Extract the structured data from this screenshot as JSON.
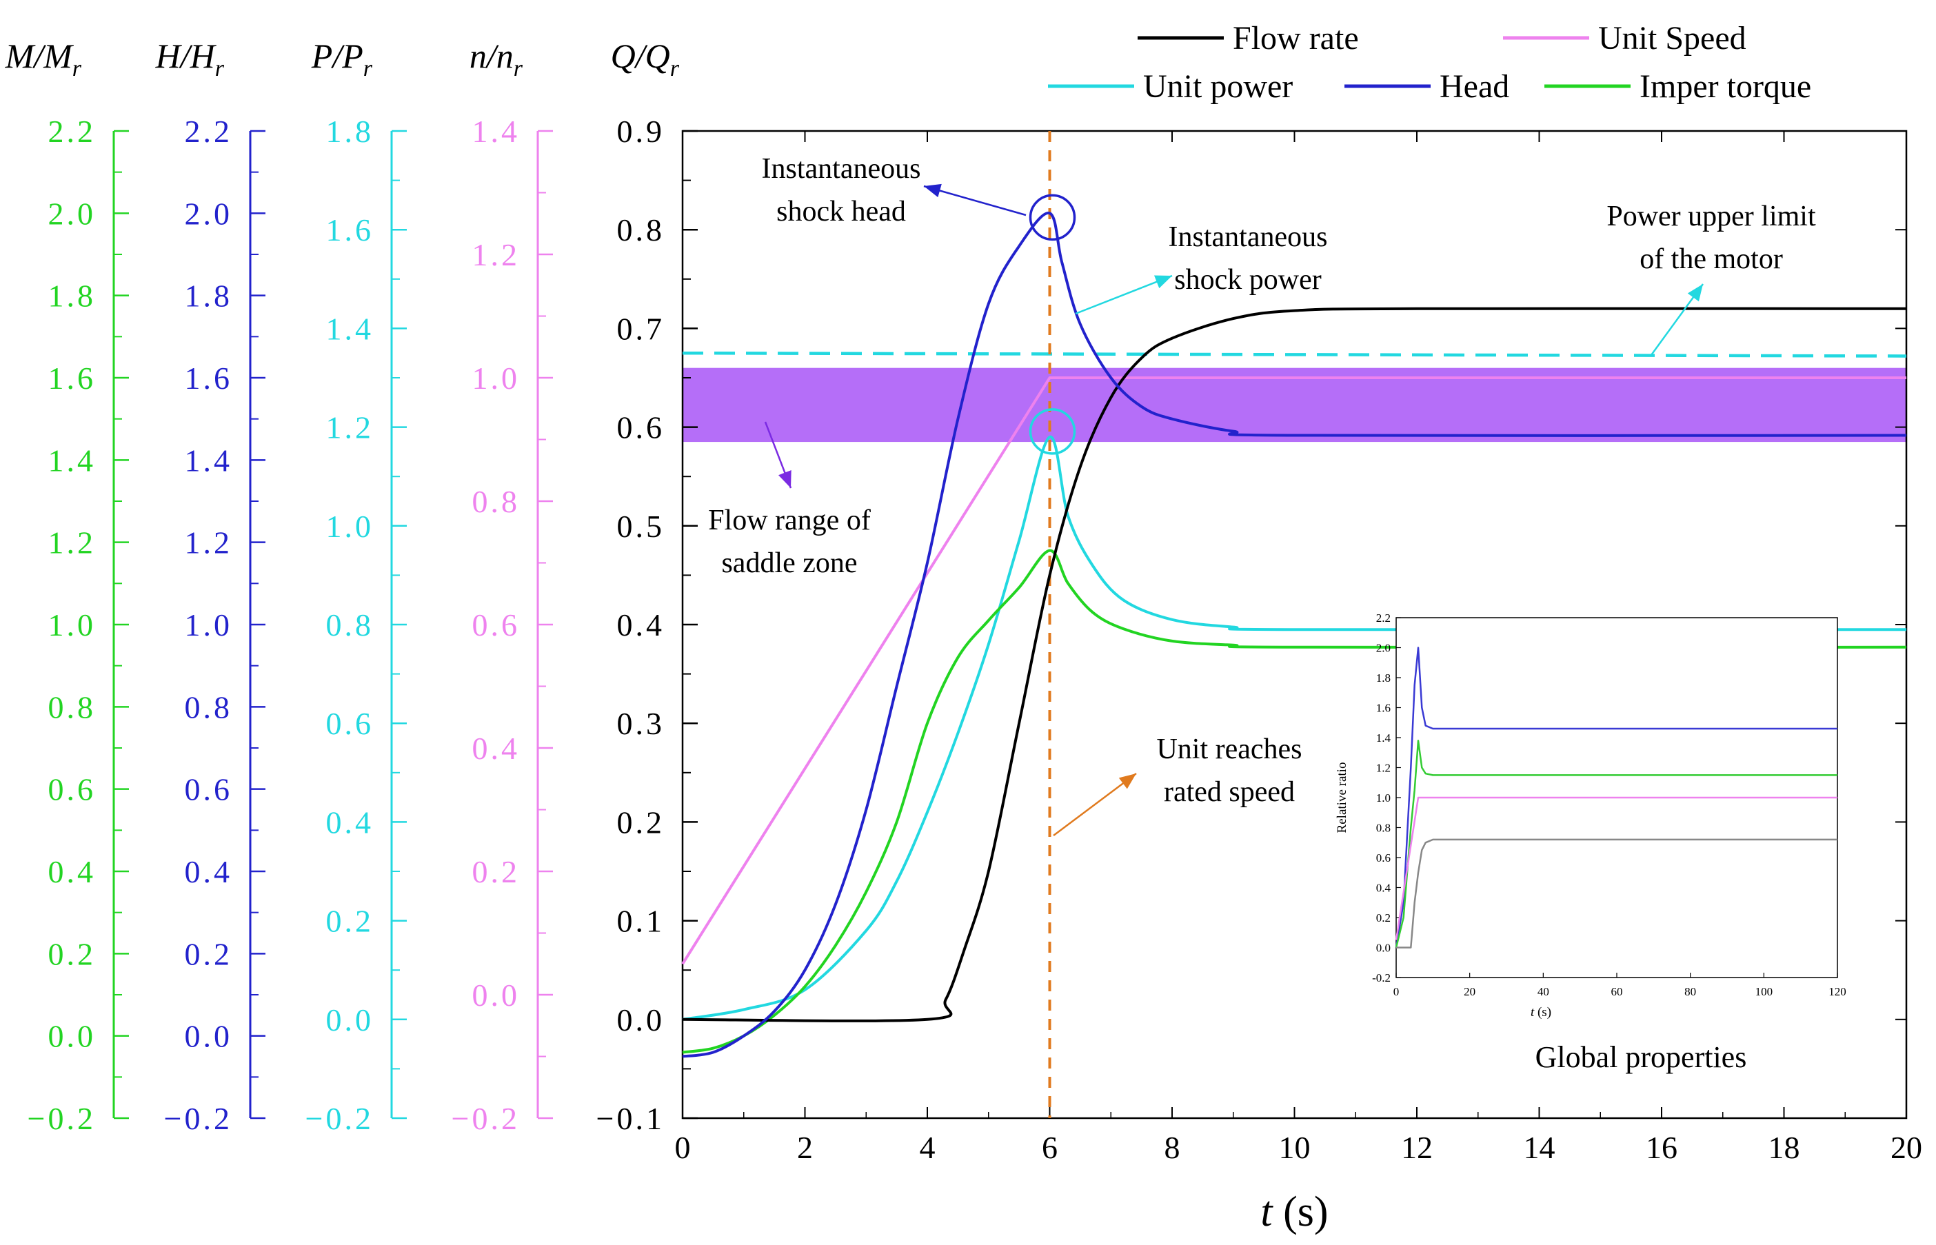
{
  "chart_data": {
    "type": "line",
    "xlabel": "t (s)",
    "xlim": [
      0,
      20
    ],
    "xticks": [
      0,
      2,
      4,
      6,
      8,
      10,
      12,
      14,
      16,
      18,
      20
    ],
    "colors": {
      "torque": "#22d422",
      "head": "#2222cc",
      "power": "#22d8e0",
      "speed": "#ee82ee",
      "flow": "#000000",
      "band": "#a855f7",
      "marker": "#e07a1e"
    },
    "axes": [
      {
        "key": "torque",
        "label_main": "M/M",
        "label_sub": "r",
        "ylim": [
          -0.2,
          2.2
        ],
        "ticks": [
          "−0.2",
          "0.0",
          "0.2",
          "0.4",
          "0.6",
          "0.8",
          "1.0",
          "1.2",
          "1.4",
          "1.6",
          "1.8",
          "2.0",
          "2.2"
        ]
      },
      {
        "key": "head",
        "label_main": "H/H",
        "label_sub": "r",
        "ylim": [
          -0.2,
          2.2
        ],
        "ticks": [
          "−0.2",
          "0.0",
          "0.2",
          "0.4",
          "0.6",
          "0.8",
          "1.0",
          "1.2",
          "1.4",
          "1.6",
          "1.8",
          "2.0",
          "2.2"
        ]
      },
      {
        "key": "power",
        "label_main": "P/P",
        "label_sub": "r",
        "ylim": [
          -0.2,
          1.8
        ],
        "ticks": [
          "−0.2",
          "0.0",
          "0.2",
          "0.4",
          "0.6",
          "0.8",
          "1.0",
          "1.2",
          "1.4",
          "1.6",
          "1.8"
        ]
      },
      {
        "key": "speed",
        "label_main": "n/n",
        "label_sub": "r",
        "ylim": [
          -0.2,
          1.4
        ],
        "ticks": [
          "−0.2",
          "0.0",
          "0.2",
          "0.4",
          "0.6",
          "0.8",
          "1.0",
          "1.2",
          "1.4"
        ]
      },
      {
        "key": "flow",
        "label_main": "Q/Q",
        "label_sub": "r",
        "ylim": [
          -0.1,
          0.9
        ],
        "ticks": [
          "−0.1",
          "0.0",
          "0.1",
          "0.2",
          "0.3",
          "0.4",
          "0.5",
          "0.6",
          "0.7",
          "0.8",
          "0.9"
        ]
      }
    ],
    "legend": [
      {
        "key": "flow",
        "label": "Flow rate"
      },
      {
        "key": "speed",
        "label": "Unit Speed"
      },
      {
        "key": "power",
        "label": "Unit power"
      },
      {
        "key": "head",
        "label": "Head"
      },
      {
        "key": "torque",
        "label": "Imper torque"
      }
    ],
    "series": [
      {
        "name": "Flow rate",
        "key": "flow",
        "axis_range": [
          -0.1,
          0.9
        ],
        "points": [
          [
            0,
            0.0
          ],
          [
            4.0,
            0.0
          ],
          [
            4.3,
            0.02
          ],
          [
            4.6,
            0.07
          ],
          [
            5.0,
            0.15
          ],
          [
            5.5,
            0.3
          ],
          [
            6.0,
            0.45
          ],
          [
            6.5,
            0.56
          ],
          [
            7.0,
            0.63
          ],
          [
            7.5,
            0.67
          ],
          [
            8.0,
            0.69
          ],
          [
            9.0,
            0.71
          ],
          [
            10.0,
            0.718
          ],
          [
            12.0,
            0.72
          ],
          [
            20.0,
            0.72
          ]
        ]
      },
      {
        "name": "Unit Speed",
        "key": "speed",
        "axis_range": [
          -0.2,
          1.4
        ],
        "points": [
          [
            0,
            0.05
          ],
          [
            6.0,
            1.0
          ],
          [
            20.0,
            1.0
          ]
        ]
      },
      {
        "name": "Unit power",
        "key": "power",
        "axis_range": [
          -0.2,
          1.8
        ],
        "points": [
          [
            0,
            0.0
          ],
          [
            1.0,
            0.02
          ],
          [
            2.0,
            0.06
          ],
          [
            3.0,
            0.18
          ],
          [
            3.5,
            0.28
          ],
          [
            4.0,
            0.42
          ],
          [
            4.5,
            0.58
          ],
          [
            5.0,
            0.76
          ],
          [
            5.5,
            0.97
          ],
          [
            6.0,
            1.18
          ],
          [
            6.3,
            1.02
          ],
          [
            6.7,
            0.92
          ],
          [
            7.2,
            0.85
          ],
          [
            8.0,
            0.81
          ],
          [
            9.0,
            0.795
          ],
          [
            10.0,
            0.79
          ],
          [
            20.0,
            0.79
          ]
        ]
      },
      {
        "name": "Head",
        "key": "head",
        "axis_range": [
          -0.2,
          2.2
        ],
        "points": [
          [
            0,
            -0.05
          ],
          [
            0.5,
            -0.04
          ],
          [
            1.0,
            0.0
          ],
          [
            1.5,
            0.06
          ],
          [
            2.0,
            0.16
          ],
          [
            2.5,
            0.32
          ],
          [
            3.0,
            0.55
          ],
          [
            3.5,
            0.85
          ],
          [
            4.0,
            1.15
          ],
          [
            4.5,
            1.5
          ],
          [
            5.0,
            1.78
          ],
          [
            5.5,
            1.92
          ],
          [
            6.0,
            2.0
          ],
          [
            6.2,
            1.88
          ],
          [
            6.5,
            1.73
          ],
          [
            7.0,
            1.6
          ],
          [
            7.5,
            1.53
          ],
          [
            8.0,
            1.5
          ],
          [
            9.0,
            1.47
          ],
          [
            10.0,
            1.46
          ],
          [
            20.0,
            1.46
          ]
        ]
      },
      {
        "name": "Imper torque",
        "key": "torque",
        "axis_range": [
          -0.2,
          2.2
        ],
        "points": [
          [
            0,
            -0.04
          ],
          [
            0.5,
            -0.03
          ],
          [
            1.0,
            0.0
          ],
          [
            1.5,
            0.05
          ],
          [
            2.0,
            0.12
          ],
          [
            2.5,
            0.22
          ],
          [
            3.0,
            0.35
          ],
          [
            3.5,
            0.52
          ],
          [
            4.0,
            0.76
          ],
          [
            4.5,
            0.92
          ],
          [
            5.0,
            1.01
          ],
          [
            5.5,
            1.09
          ],
          [
            6.0,
            1.18
          ],
          [
            6.3,
            1.1
          ],
          [
            6.7,
            1.03
          ],
          [
            7.2,
            0.99
          ],
          [
            8.0,
            0.96
          ],
          [
            9.0,
            0.95
          ],
          [
            10.0,
            0.945
          ],
          [
            20.0,
            0.945
          ]
        ]
      }
    ],
    "band": {
      "label": "Flow range of saddle zone",
      "flow_range": [
        0.585,
        0.66
      ]
    },
    "power_limit": {
      "label": "Power upper limit of the motor",
      "flow_start": 0.675,
      "flow_end": 0.672
    },
    "marker": {
      "t": 6,
      "label": "Unit reaches rated speed"
    },
    "annotations": [
      {
        "id": "shock_head",
        "line1": "Instantaneous",
        "line2": "shock head"
      },
      {
        "id": "shock_power",
        "line1": "Instantaneous",
        "line2": "shock power"
      },
      {
        "id": "power_limit",
        "line1": "Power upper limit",
        "line2": "of the motor"
      },
      {
        "id": "saddle",
        "line1": "Flow range of",
        "line2": "saddle zone"
      },
      {
        "id": "rated",
        "line1": "Unit reaches",
        "line2": "rated speed"
      }
    ],
    "inset": {
      "title": "Global properties",
      "ylabel": "Relative ratio",
      "xlabel": "t (s)",
      "xlim": [
        0,
        120
      ],
      "ylim": [
        -0.2,
        2.2
      ],
      "xticks": [
        "0",
        "20",
        "40",
        "60",
        "80",
        "100",
        "120"
      ],
      "yticks": [
        "-0.2",
        "0.0",
        "0.2",
        "0.4",
        "0.6",
        "0.8",
        "1.0",
        "1.2",
        "1.4",
        "1.6",
        "1.8",
        "2.0",
        "2.2"
      ],
      "series": [
        {
          "key": "head",
          "color": "#3a3ad4",
          "points": [
            [
              0,
              0.0
            ],
            [
              2,
              0.3
            ],
            [
              4,
              1.2
            ],
            [
              5,
              1.75
            ],
            [
              6,
              2.0
            ],
            [
              7,
              1.6
            ],
            [
              8,
              1.48
            ],
            [
              10,
              1.46
            ],
            [
              120,
              1.46
            ]
          ]
        },
        {
          "key": "torque",
          "color": "#33cc33",
          "points": [
            [
              0,
              0.0
            ],
            [
              2,
              0.2
            ],
            [
              4,
              0.8
            ],
            [
              5,
              1.05
            ],
            [
              6,
              1.38
            ],
            [
              7,
              1.2
            ],
            [
              8,
              1.16
            ],
            [
              10,
              1.15
            ],
            [
              120,
              1.15
            ]
          ]
        },
        {
          "key": "speed",
          "color": "#ee82ee",
          "points": [
            [
              0,
              0.05
            ],
            [
              6,
              1.0
            ],
            [
              120,
              1.0
            ]
          ]
        },
        {
          "key": "flow",
          "color": "#888888",
          "points": [
            [
              0,
              0.0
            ],
            [
              4,
              0.0
            ],
            [
              5,
              0.3
            ],
            [
              6,
              0.5
            ],
            [
              7,
              0.65
            ],
            [
              8,
              0.7
            ],
            [
              10,
              0.72
            ],
            [
              120,
              0.72
            ]
          ]
        }
      ]
    }
  }
}
